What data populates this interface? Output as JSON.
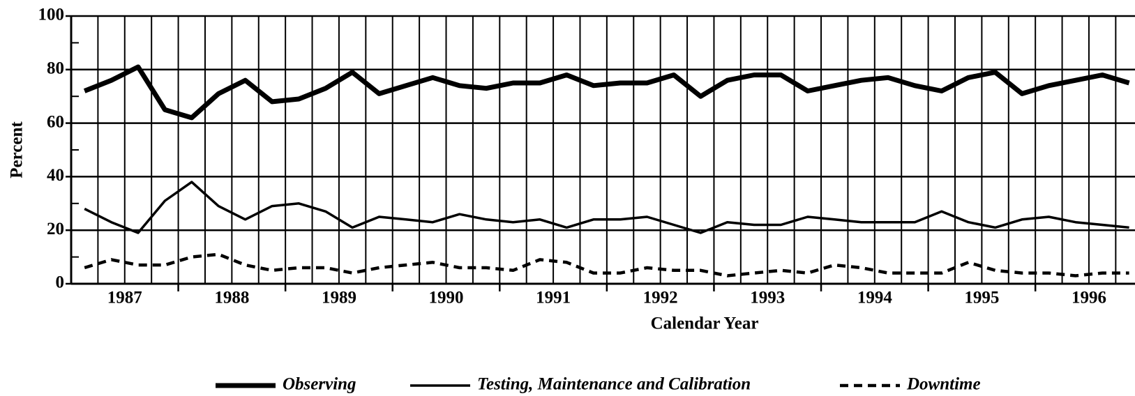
{
  "chart_data": {
    "type": "line",
    "ylabel": "Percent",
    "xlabel": "Calendar Year",
    "x": [
      1987.125,
      1987.375,
      1987.625,
      1987.875,
      1988.125,
      1988.375,
      1988.625,
      1988.875,
      1989.125,
      1989.375,
      1989.625,
      1989.875,
      1990.125,
      1990.375,
      1990.625,
      1990.875,
      1991.125,
      1991.375,
      1991.625,
      1991.875,
      1992.125,
      1992.375,
      1992.625,
      1992.875,
      1993.125,
      1993.375,
      1993.625,
      1993.875,
      1994.125,
      1994.375,
      1994.625,
      1994.875,
      1995.125,
      1995.375,
      1995.625,
      1995.875,
      1996.125,
      1996.375,
      1996.625,
      1996.875
    ],
    "series": [
      {
        "name": "Observing",
        "color": "#000000",
        "width": 7,
        "dash": "none",
        "values": [
          72,
          76,
          81,
          65,
          62,
          71,
          76,
          68,
          69,
          73,
          79,
          71,
          74,
          77,
          74,
          73,
          75,
          75,
          78,
          74,
          75,
          75,
          78,
          70,
          76,
          78,
          78,
          72,
          74,
          76,
          77,
          74,
          72,
          77,
          79,
          71,
          74,
          76,
          78,
          75
        ]
      },
      {
        "name": "Testing, Maintenance and Calibration",
        "color": "#000000",
        "width": 3.5,
        "dash": "none",
        "values": [
          28,
          23,
          19,
          31,
          38,
          29,
          24,
          29,
          30,
          27,
          21,
          25,
          24,
          23,
          26,
          24,
          23,
          24,
          21,
          24,
          24,
          25,
          22,
          19,
          23,
          22,
          22,
          25,
          24,
          23,
          23,
          23,
          27,
          23,
          21,
          24,
          25,
          23,
          22,
          21
        ]
      },
      {
        "name": "Downtime",
        "color": "#000000",
        "width": 4.5,
        "dash": "12 8",
        "values": [
          6,
          9,
          7,
          7,
          10,
          11,
          7,
          5,
          6,
          6,
          4,
          6,
          7,
          8,
          6,
          6,
          5,
          9,
          8,
          4,
          4,
          6,
          5,
          5,
          3,
          4,
          5,
          4,
          7,
          6,
          4,
          4,
          4,
          8,
          5,
          4,
          4,
          3,
          4,
          4
        ]
      }
    ],
    "xlim": [
      1987,
      1996.93
    ],
    "xticks": [
      {
        "value": 1987.5,
        "label": "1987"
      },
      {
        "value": 1988.5,
        "label": "1988"
      },
      {
        "value": 1989.5,
        "label": "1989"
      },
      {
        "value": 1990.5,
        "label": "1990"
      },
      {
        "value": 1991.5,
        "label": "1991"
      },
      {
        "value": 1992.5,
        "label": "1992"
      },
      {
        "value": 1993.5,
        "label": "1993"
      },
      {
        "value": 1994.5,
        "label": "1994"
      },
      {
        "value": 1995.5,
        "label": "1995"
      },
      {
        "value": 1996.5,
        "label": "1996"
      }
    ],
    "xgrid": [
      1987.25,
      1987.5,
      1987.75,
      1988,
      1988.25,
      1988.5,
      1988.75,
      1989,
      1989.25,
      1989.5,
      1989.75,
      1990,
      1990.25,
      1990.5,
      1990.75,
      1991,
      1991.25,
      1991.5,
      1991.75,
      1992,
      1992.25,
      1992.5,
      1992.75,
      1993,
      1993.25,
      1993.5,
      1993.75,
      1994,
      1994.25,
      1994.5,
      1994.75,
      1995,
      1995.25,
      1995.5,
      1995.75,
      1996,
      1996.25,
      1996.5,
      1996.75
    ],
    "ylim": [
      0,
      100
    ],
    "yticks": [
      0,
      20,
      40,
      60,
      80,
      100
    ],
    "yminor": [
      10,
      30,
      50,
      70,
      90
    ],
    "grid": true,
    "legend": "bottom"
  }
}
